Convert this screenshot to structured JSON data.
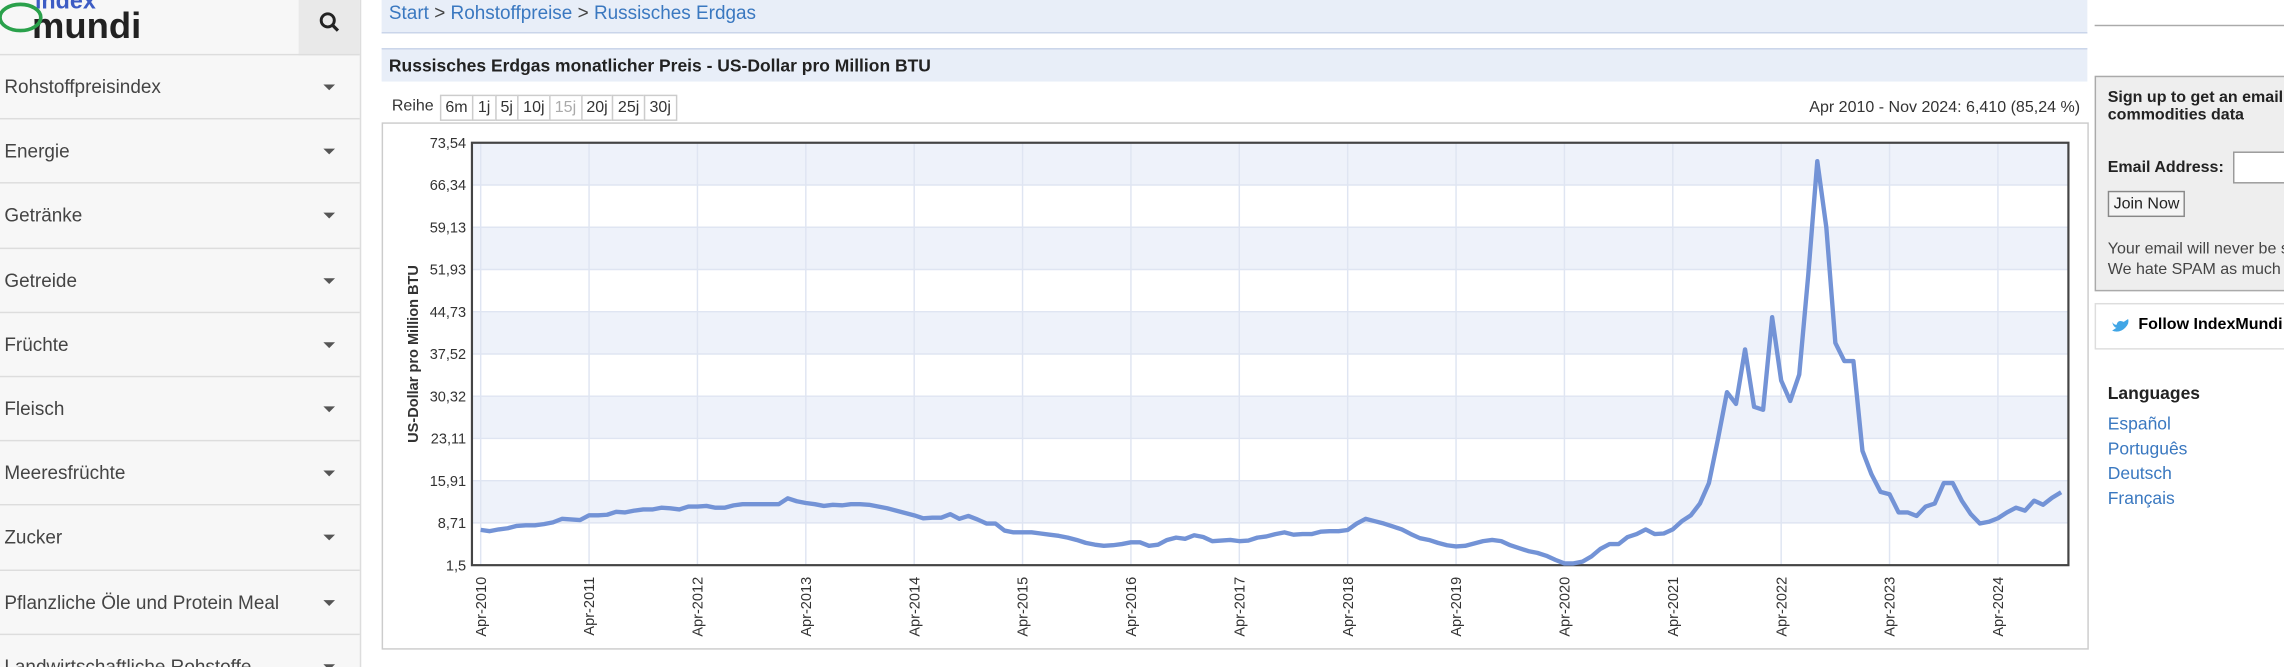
{
  "sidebar": {
    "logo": [
      "index",
      "mundi"
    ],
    "menu": [
      "Rohstoffpreisindex",
      "Energie",
      "Getränke",
      "Getreide",
      "Früchte",
      "Fleisch",
      "Meeresfrüchte",
      "Zucker",
      "Pflanzliche Öle und Protein Meal",
      "Landwirtschaftliche Rohstoffe"
    ]
  },
  "breadcrumb": {
    "items": [
      "Start",
      "Rohstoffpreise",
      "Russisches Erdgas"
    ],
    "separator": ">"
  },
  "chart_data": {
    "type": "line",
    "title": "Russisches Erdgas monatlicher Preis - US-Dollar pro Million BTU",
    "range_label": "Reihe",
    "range_buttons": [
      "6m",
      "1j",
      "5j",
      "10j",
      "15j",
      "20j",
      "25j",
      "30j"
    ],
    "period_text": "Apr 2010 - Nov 2024: 6,410 (85,24 %)",
    "y_label": "US-Dollar pro Million BTU",
    "categories": [
      "Apr-2010",
      null,
      null,
      null,
      null,
      null,
      null,
      null,
      null,
      null,
      null,
      null,
      "Apr-2011",
      null,
      null,
      null,
      null,
      null,
      null,
      null,
      null,
      null,
      null,
      null,
      "Apr-2012",
      null,
      null,
      null,
      null,
      null,
      null,
      null,
      null,
      null,
      null,
      null,
      "Apr-2013",
      null,
      null,
      null,
      null,
      null,
      null,
      null,
      null,
      null,
      null,
      null,
      "Apr-2014",
      null,
      null,
      null,
      null,
      null,
      null,
      null,
      null,
      null,
      null,
      null,
      "Apr-2015",
      null,
      null,
      null,
      null,
      null,
      null,
      null,
      null,
      null,
      null,
      null,
      "Apr-2016",
      null,
      null,
      null,
      null,
      null,
      null,
      null,
      null,
      null,
      null,
      null,
      "Apr-2017",
      null,
      null,
      null,
      null,
      null,
      null,
      null,
      null,
      null,
      null,
      null,
      "Apr-2018",
      null,
      null,
      null,
      null,
      null,
      null,
      null,
      null,
      null,
      null,
      null,
      "Apr-2019",
      null,
      null,
      null,
      null,
      null,
      null,
      null,
      null,
      null,
      null,
      null,
      "Apr-2020",
      null,
      null,
      null,
      null,
      null,
      null,
      null,
      null,
      null,
      null,
      null,
      "Apr-2021",
      null,
      null,
      null,
      null,
      null,
      null,
      null,
      null,
      null,
      null,
      null,
      "Apr-2022",
      null,
      null,
      null,
      null,
      null,
      null,
      null,
      null,
      null,
      null,
      null,
      "Apr-2023",
      null,
      null,
      null,
      null,
      null,
      null,
      null,
      null,
      null,
      null,
      null,
      "Apr-2024",
      null,
      null,
      null,
      null,
      null,
      null,
      null
    ],
    "series": [
      {
        "name": "US-Dollar pro Million BTU",
        "color": "#7393d6",
        "values": [
          7.52,
          7.3,
          7.6,
          7.8,
          8.2,
          8.3,
          8.3,
          8.5,
          8.8,
          9.4,
          9.3,
          9.2,
          10,
          10,
          10.1,
          10.6,
          10.5,
          10.8,
          11,
          11,
          11.3,
          11.2,
          11,
          11.5,
          11.5,
          11.6,
          11.3,
          11.3,
          11.7,
          11.9,
          11.9,
          11.9,
          11.9,
          11.9,
          12.9,
          12.4,
          12.1,
          11.9,
          11.6,
          11.8,
          11.7,
          11.9,
          11.9,
          11.8,
          11.5,
          11.2,
          10.8,
          10.4,
          10,
          9.5,
          9.6,
          9.6,
          10.2,
          9.4,
          9.9,
          9.3,
          8.6,
          8.6,
          7.4,
          7.1,
          7.1,
          7.1,
          6.9,
          6.7,
          6.5,
          6.2,
          5.8,
          5.3,
          5,
          4.8,
          4.9,
          5.1,
          5.4,
          5.4,
          4.8,
          5,
          5.8,
          6.2,
          6,
          6.6,
          6.3,
          5.6,
          5.7,
          5.8,
          5.6,
          5.7,
          6.2,
          6.4,
          6.8,
          7.1,
          6.7,
          6.8,
          6.8,
          7.2,
          7.3,
          7.3,
          7.5,
          8.6,
          9.4,
          9,
          8.6,
          8.1,
          7.6,
          6.8,
          6.1,
          5.8,
          5.3,
          4.9,
          4.7,
          4.8,
          5.2,
          5.6,
          5.8,
          5.6,
          4.9,
          4.4,
          3.9,
          3.6,
          3.1,
          2.4,
          1.8,
          1.8,
          2.1,
          3,
          4.3,
          5.1,
          5.1,
          6.3,
          6.8,
          7.6,
          6.8,
          6.9,
          7.6,
          9,
          10,
          12,
          15.5,
          23,
          31,
          29,
          38.3,
          28.5,
          28,
          43.8,
          33,
          29.5,
          34,
          51,
          70.4,
          59.1,
          39.4,
          36.3,
          36.3,
          21,
          17,
          14,
          13.6,
          10.5,
          10.5,
          9.9,
          11.5,
          12,
          15.5,
          15.5,
          12.5,
          10.2,
          8.6,
          8.9,
          9.5,
          10.5,
          11.3,
          10.8,
          12.5,
          11.8,
          13,
          13.93
        ]
      }
    ],
    "ylim": [
      1.5,
      73.54
    ],
    "yticks": [
      {
        "value": 1.5,
        "label": "1,5"
      },
      {
        "value": 8.71,
        "label": "8,71"
      },
      {
        "value": 15.91,
        "label": "15,91"
      },
      {
        "value": 23.11,
        "label": "23,11"
      },
      {
        "value": 30.32,
        "label": "30,32"
      },
      {
        "value": 37.52,
        "label": "37,52"
      },
      {
        "value": 44.73,
        "label": "44,73"
      },
      {
        "value": 51.93,
        "label": "51,93"
      },
      {
        "value": 59.13,
        "label": "59,13"
      },
      {
        "value": 66.34,
        "label": "66,34"
      },
      {
        "value": 73.54,
        "label": "73,54"
      }
    ],
    "grid": true
  },
  "signup": {
    "heading": "Sign up to get an email",
    "heading2": "commodities data",
    "email_label": "Email Address:",
    "button": "Join Now",
    "note1": "Your email will never be s",
    "note2": "We hate SPAM as much y"
  },
  "follow": "Follow IndexMundi o",
  "languages": {
    "title": "Languages",
    "items": [
      "Español",
      "Português",
      "Deutsch",
      "Français"
    ]
  }
}
